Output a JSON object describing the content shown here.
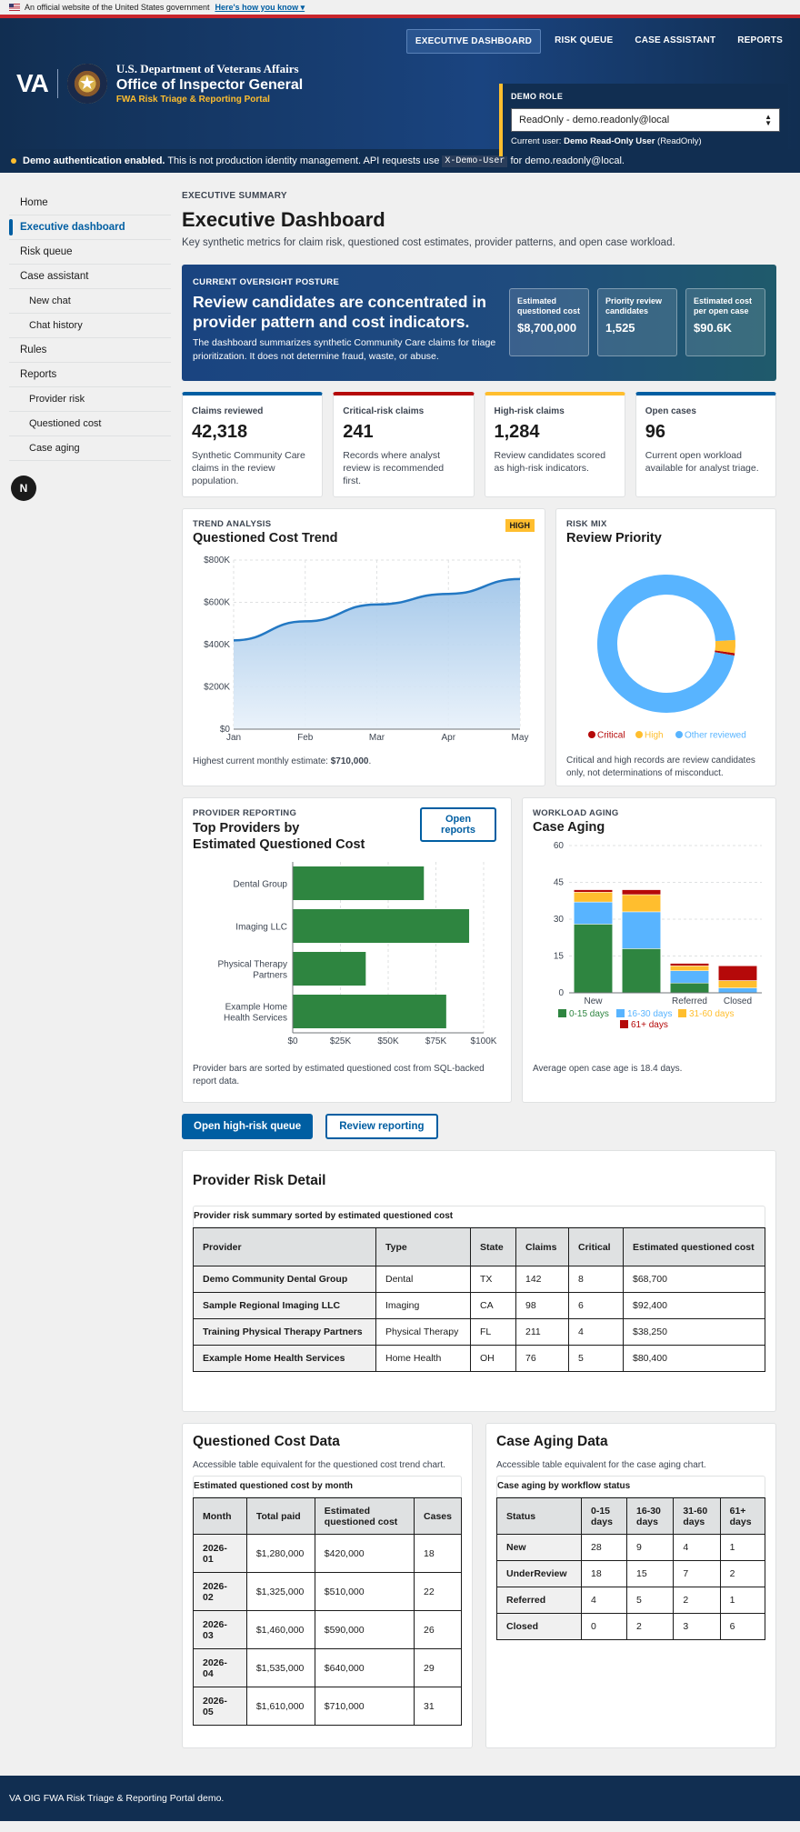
{
  "gov_banner": {
    "text": "An official website of the United States government",
    "link": "Here's how you know ▾"
  },
  "nav": {
    "top": [
      {
        "label": "EXECUTIVE DASHBOARD"
      },
      {
        "label": "RISK QUEUE"
      },
      {
        "label": "CASE ASSISTANT"
      },
      {
        "label": "REPORTS"
      }
    ]
  },
  "brand": {
    "va": "VA",
    "line1": "U.S. Department of Veterans Affairs",
    "line2": "Office of Inspector General",
    "line3": "FWA Risk Triage & Reporting Portal"
  },
  "demo_role": {
    "label": "DEMO ROLE",
    "selected": "ReadOnly - demo.readonly@local",
    "current_prefix": "Current user:",
    "current_user": "Demo Read-Only User",
    "current_role": "(ReadOnly)"
  },
  "auth_banner": {
    "bold": "Demo authentication enabled.",
    "text": " This is not production identity management. API requests use ",
    "code": "X-Demo-User",
    "text2": " for demo.readonly@local."
  },
  "sidebar": {
    "items": [
      {
        "label": "Home"
      },
      {
        "label": "Executive dashboard"
      },
      {
        "label": "Risk queue"
      },
      {
        "label": "Case assistant"
      },
      {
        "label": "New chat"
      },
      {
        "label": "Chat history"
      },
      {
        "label": "Rules"
      },
      {
        "label": "Reports"
      },
      {
        "label": "Provider risk"
      },
      {
        "label": "Questioned cost"
      },
      {
        "label": "Case aging"
      }
    ],
    "fab": "N"
  },
  "page": {
    "kicker": "EXECUTIVE SUMMARY",
    "title": "Executive Dashboard",
    "lead": "Key synthetic metrics for claim risk, questioned cost estimates, provider patterns, and open case workload."
  },
  "posture": {
    "kicker": "CURRENT OVERSIGHT POSTURE",
    "title": "Review candidates are concentrated in provider pattern and cost indicators.",
    "desc": "The dashboard summarizes synthetic Community Care claims for triage prioritization. It does not determine fraud, waste, or abuse.",
    "stats": [
      {
        "label": "Estimated questioned cost",
        "value": "$8,700,000"
      },
      {
        "label": "Priority review candidates",
        "value": "1,525"
      },
      {
        "label": "Estimated cost per open case",
        "value": "$90.6K"
      }
    ]
  },
  "kpis": [
    {
      "label": "Claims reviewed",
      "value": "42,318",
      "desc": "Synthetic Community Care claims in the review population.",
      "color": "#005ea2"
    },
    {
      "label": "Critical-risk claims",
      "value": "241",
      "desc": "Records where analyst review is recommended first.",
      "color": "#b50909"
    },
    {
      "label": "High-risk claims",
      "value": "1,284",
      "desc": "Review candidates scored as high-risk indicators.",
      "color": "#ffbe2e"
    },
    {
      "label": "Open cases",
      "value": "96",
      "desc": "Current open workload available for analyst triage.",
      "color": "#005ea2"
    }
  ],
  "trend": {
    "kicker": "TREND ANALYSIS",
    "title": "Questioned Cost Trend",
    "badge": "HIGH",
    "note_prefix": "Highest current monthly estimate: ",
    "note_value": "$710,000",
    "note_suffix": "."
  },
  "riskmix": {
    "kicker": "RISK MIX",
    "title": "Review Priority",
    "note": "Critical and high records are review candidates only, not determinations of misconduct."
  },
  "providers": {
    "kicker": "PROVIDER REPORTING",
    "title": "Top Providers by Estimated Questioned Cost",
    "button": "Open reports",
    "note": "Provider bars are sorted by estimated questioned cost from SQL-backed report data."
  },
  "aging": {
    "kicker": "WORKLOAD AGING",
    "title": "Case Aging",
    "note": "Average open case age is 18.4 days."
  },
  "actions": {
    "primary": "Open high-risk queue",
    "secondary": "Review reporting"
  },
  "chart_data": [
    {
      "type": "area",
      "x": [
        "Jan",
        "Feb",
        "Mar",
        "Apr",
        "May"
      ],
      "values": [
        420000,
        510000,
        590000,
        640000,
        710000
      ],
      "ylim": [
        0,
        800000
      ],
      "yticks": [
        "$0",
        "$200K",
        "$400K",
        "$600K",
        "$800K"
      ],
      "color": "#2378c3"
    },
    {
      "type": "pie",
      "categories": [
        "Critical",
        "High",
        "Other reviewed"
      ],
      "values": [
        241,
        1284,
        40793
      ],
      "colors": [
        "#b50909",
        "#ffbe2e",
        "#58b4ff"
      ],
      "legend": "bottom"
    },
    {
      "type": "bar",
      "orientation": "horizontal",
      "categories": [
        "Dental Group",
        "Imaging LLC",
        "Physical Therapy Partners",
        "Example Home Health Services"
      ],
      "values": [
        68700,
        92400,
        38250,
        80400
      ],
      "xlim": [
        0,
        100000
      ],
      "xticks": [
        "$0",
        "$25K",
        "$50K",
        "$75K",
        "$100K"
      ],
      "color": "#2e8540"
    },
    {
      "type": "bar",
      "stacked": true,
      "categories": [
        "New",
        "UnderReview",
        "Referred",
        "Closed"
      ],
      "tick_labels": [
        "New",
        "",
        "Referred",
        "Closed"
      ],
      "ylim": [
        0,
        60
      ],
      "yticks": [
        "0",
        "15",
        "30",
        "45",
        "60"
      ],
      "series": [
        {
          "name": "0-15 days",
          "values": [
            28,
            18,
            4,
            0
          ],
          "color": "#2e8540"
        },
        {
          "name": "16-30 days",
          "values": [
            9,
            15,
            5,
            2
          ],
          "color": "#58b4ff"
        },
        {
          "name": "31-60 days",
          "values": [
            4,
            7,
            2,
            3
          ],
          "color": "#ffbe2e"
        },
        {
          "name": "61+ days",
          "values": [
            1,
            2,
            1,
            6
          ],
          "color": "#b50909"
        }
      ],
      "legend": "bottom"
    }
  ],
  "provider_table": {
    "title": "Provider Risk Detail",
    "caption": "Provider risk summary sorted by estimated questioned cost",
    "headers": [
      "Provider",
      "Type",
      "State",
      "Claims",
      "Critical",
      "Estimated questioned cost"
    ],
    "rows": [
      [
        "Demo Community Dental Group",
        "Dental",
        "TX",
        "142",
        "8",
        "$68,700"
      ],
      [
        "Sample Regional Imaging LLC",
        "Imaging",
        "CA",
        "98",
        "6",
        "$92,400"
      ],
      [
        "Training Physical Therapy Partners",
        "Physical Therapy",
        "FL",
        "211",
        "4",
        "$38,250"
      ],
      [
        "Example Home Health Services",
        "Home Health",
        "OH",
        "76",
        "5",
        "$80,400"
      ]
    ]
  },
  "cost_table": {
    "title": "Questioned Cost Data",
    "desc": "Accessible table equivalent for the questioned cost trend chart.",
    "caption": "Estimated questioned cost by month",
    "headers": [
      "Month",
      "Total paid",
      "Estimated questioned cost",
      "Cases"
    ],
    "rows": [
      [
        "2026-01",
        "$1,280,000",
        "$420,000",
        "18"
      ],
      [
        "2026-02",
        "$1,325,000",
        "$510,000",
        "22"
      ],
      [
        "2026-03",
        "$1,460,000",
        "$590,000",
        "26"
      ],
      [
        "2026-04",
        "$1,535,000",
        "$640,000",
        "29"
      ],
      [
        "2026-05",
        "$1,610,000",
        "$710,000",
        "31"
      ]
    ]
  },
  "aging_table": {
    "title": "Case Aging Data",
    "desc": "Accessible table equivalent for the case aging chart.",
    "caption": "Case aging by workflow status",
    "headers": [
      "Status",
      "0-15 days",
      "16-30 days",
      "31-60 days",
      "61+ days"
    ],
    "rows": [
      [
        "New",
        "28",
        "9",
        "4",
        "1"
      ],
      [
        "UnderReview",
        "18",
        "15",
        "7",
        "2"
      ],
      [
        "Referred",
        "4",
        "5",
        "2",
        "1"
      ],
      [
        "Closed",
        "0",
        "2",
        "3",
        "6"
      ]
    ]
  },
  "footer": {
    "text": "VA OIG FWA Risk Triage & Reporting Portal demo."
  }
}
